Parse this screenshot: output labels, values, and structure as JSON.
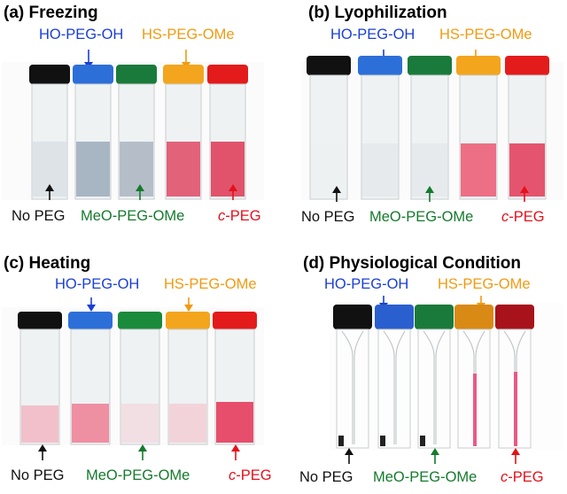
{
  "colors": {
    "black": "#111111",
    "blue": "#1a3fd6",
    "green": "#147a2c",
    "orange": "#f29a10",
    "red": "#e5101a"
  },
  "panels": [
    {
      "title": "(a) Freezing",
      "top_labels": [
        {
          "text": "HO-PEG-OH",
          "color": "blue"
        },
        {
          "text": "HS-PEG-OMe",
          "color": "orange"
        }
      ],
      "bottom_labels": [
        {
          "text": "No PEG",
          "color": "black"
        },
        {
          "text": "MeO-PEG-OMe",
          "color": "green"
        },
        {
          "text": "c-PEG",
          "color": "red",
          "italic_prefix": "c"
        }
      ]
    },
    {
      "title": "(b) Lyophilization",
      "top_labels": [
        {
          "text": "HO-PEG-OH",
          "color": "blue"
        },
        {
          "text": "HS-PEG-OMe",
          "color": "orange"
        }
      ],
      "bottom_labels": [
        {
          "text": "No PEG",
          "color": "black"
        },
        {
          "text": "MeO-PEG-OMe",
          "color": "green"
        },
        {
          "text": "c-PEG",
          "color": "red",
          "italic_prefix": "c"
        }
      ]
    },
    {
      "title": "(c) Heating",
      "top_labels": [
        {
          "text": "HO-PEG-OH",
          "color": "blue"
        },
        {
          "text": "HS-PEG-OMe",
          "color": "orange"
        }
      ],
      "bottom_labels": [
        {
          "text": "No PEG",
          "color": "black"
        },
        {
          "text": "MeO-PEG-OMe",
          "color": "green"
        },
        {
          "text": "c-PEG",
          "color": "red",
          "italic_prefix": "c"
        }
      ]
    },
    {
      "title": "(d) Physiological Condition",
      "top_labels": [
        {
          "text": "HO-PEG-OH",
          "color": "blue"
        },
        {
          "text": "HS-PEG-OMe",
          "color": "orange"
        }
      ],
      "bottom_labels": [
        {
          "text": "No PEG",
          "color": "black"
        },
        {
          "text": "MeO-PEG-OMe",
          "color": "green"
        },
        {
          "text": "c-PEG",
          "color": "red",
          "italic_prefix": "c"
        }
      ]
    }
  ]
}
